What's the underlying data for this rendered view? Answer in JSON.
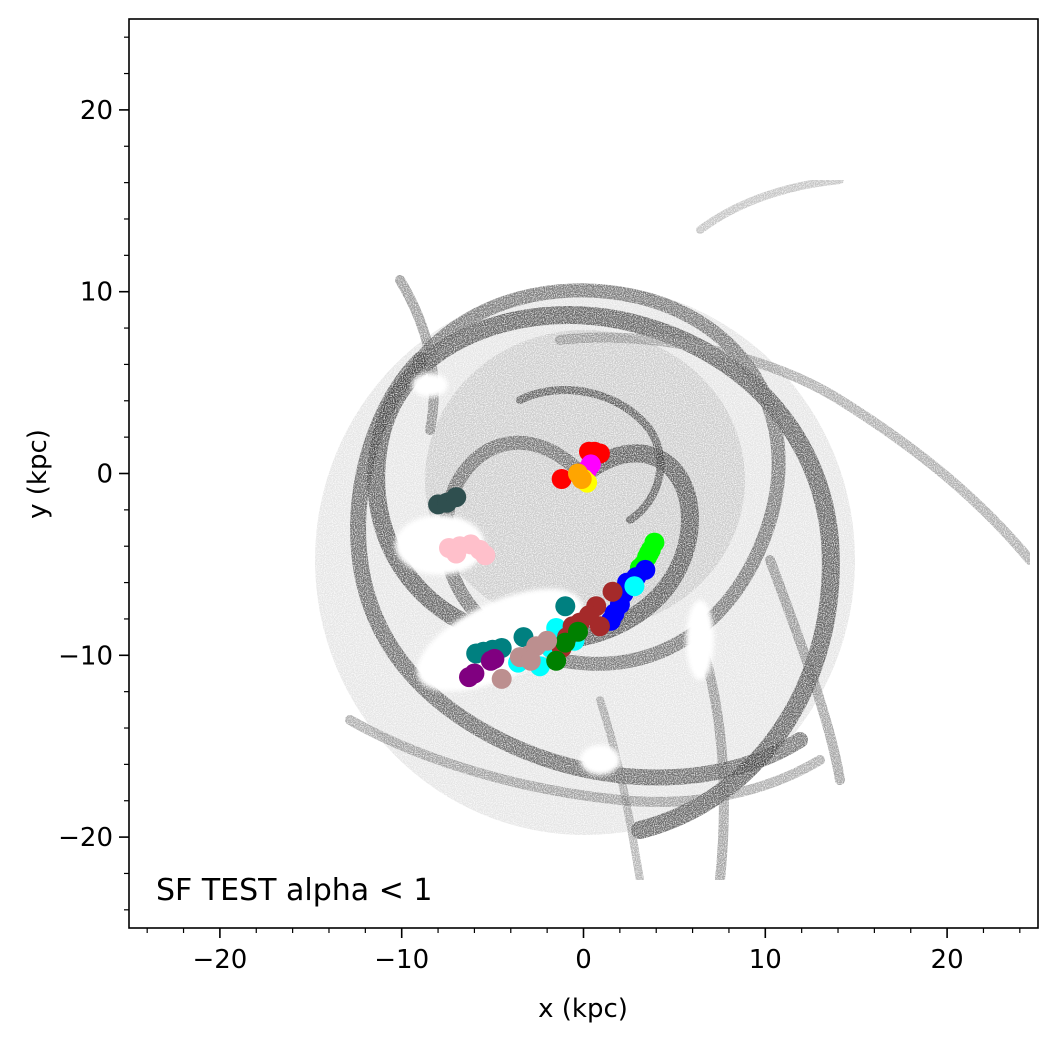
{
  "chart_data": {
    "type": "scatter",
    "xlabel": "x (kpc)",
    "ylabel": "y (kpc)",
    "xlim": [
      -25,
      25
    ],
    "ylim": [
      -25,
      25
    ],
    "xticks": [
      -20,
      -10,
      0,
      10,
      20
    ],
    "yticks": [
      -20,
      -10,
      0,
      10,
      20
    ],
    "xtick_labels": [
      "−20",
      "−10",
      "0",
      "10",
      "20"
    ],
    "ytick_labels": [
      "−20",
      "−10",
      "0",
      "10",
      "20"
    ],
    "annotation": "SF TEST alpha < 1",
    "background": "grayscale spiral galaxy gas density map",
    "series": [
      {
        "color": "#ff0000",
        "points": [
          [
            0.3,
            1.2
          ],
          [
            0.6,
            1.2
          ],
          [
            0.9,
            1.1
          ],
          [
            -1.2,
            -0.3
          ],
          [
            0.5,
            0.9
          ]
        ]
      },
      {
        "color": "#ff00ff",
        "points": [
          [
            0.2,
            0.2
          ],
          [
            0.4,
            0.5
          ]
        ]
      },
      {
        "color": "#ffff00",
        "points": [
          [
            0.0,
            -0.3
          ],
          [
            0.2,
            -0.5
          ]
        ]
      },
      {
        "color": "#ffa500",
        "points": [
          [
            -0.3,
            0.0
          ],
          [
            -0.1,
            -0.3
          ]
        ]
      },
      {
        "color": "#2f4f4f",
        "points": [
          [
            -8.0,
            -1.7
          ],
          [
            -7.5,
            -1.6
          ],
          [
            -7.0,
            -1.3
          ]
        ]
      },
      {
        "color": "#ffc0cb",
        "points": [
          [
            -7.4,
            -4.1
          ],
          [
            -6.8,
            -4.0
          ],
          [
            -6.2,
            -3.9
          ],
          [
            -5.7,
            -4.2
          ],
          [
            -5.4,
            -4.5
          ],
          [
            -7.0,
            -4.4
          ]
        ]
      },
      {
        "color": "#00ff00",
        "points": [
          [
            3.9,
            -3.8
          ],
          [
            3.7,
            -4.2
          ],
          [
            3.5,
            -4.6
          ],
          [
            3.3,
            -5.0
          ],
          [
            3.1,
            -5.2
          ],
          [
            3.6,
            -4.4
          ]
        ]
      },
      {
        "color": "#0000ff",
        "points": [
          [
            3.4,
            -5.3
          ],
          [
            2.9,
            -5.7
          ],
          [
            2.4,
            -6.0
          ],
          [
            2.2,
            -6.6
          ],
          [
            2.0,
            -7.2
          ],
          [
            1.7,
            -7.7
          ],
          [
            1.5,
            -8.1
          ]
        ]
      },
      {
        "color": "#00ffff",
        "points": [
          [
            2.8,
            -6.2
          ],
          [
            -1.5,
            -8.5
          ],
          [
            -1.8,
            -9.6
          ],
          [
            -2.4,
            -10.6
          ],
          [
            -3.6,
            -10.4
          ],
          [
            -0.5,
            -9.2
          ]
        ]
      },
      {
        "color": "#a52a2a",
        "points": [
          [
            1.6,
            -6.5
          ],
          [
            0.7,
            -7.3
          ],
          [
            0.3,
            -7.8
          ],
          [
            -0.2,
            -8.2
          ],
          [
            -0.6,
            -8.4
          ],
          [
            -0.9,
            -9.0
          ],
          [
            -1.2,
            -9.6
          ],
          [
            0.9,
            -8.4
          ]
        ]
      },
      {
        "color": "#008000",
        "points": [
          [
            -0.3,
            -8.7
          ],
          [
            -1.0,
            -9.3
          ],
          [
            -1.5,
            -10.3
          ]
        ]
      },
      {
        "color": "#008080",
        "points": [
          [
            -5.5,
            -9.8
          ],
          [
            -5.0,
            -9.7
          ],
          [
            -4.5,
            -9.6
          ],
          [
            -3.3,
            -9.0
          ],
          [
            -1.0,
            -7.3
          ],
          [
            -5.9,
            -9.9
          ]
        ]
      },
      {
        "color": "#bc8f8f",
        "points": [
          [
            -4.5,
            -11.3
          ],
          [
            -3.5,
            -10.1
          ],
          [
            -3.0,
            -10.0
          ],
          [
            -2.6,
            -9.5
          ],
          [
            -2.0,
            -9.2
          ],
          [
            -2.9,
            -10.3
          ]
        ]
      },
      {
        "color": "#800080",
        "points": [
          [
            -6.3,
            -11.2
          ],
          [
            -6.0,
            -11.0
          ],
          [
            -5.1,
            -10.3
          ],
          [
            -4.9,
            -10.2
          ]
        ]
      }
    ]
  }
}
